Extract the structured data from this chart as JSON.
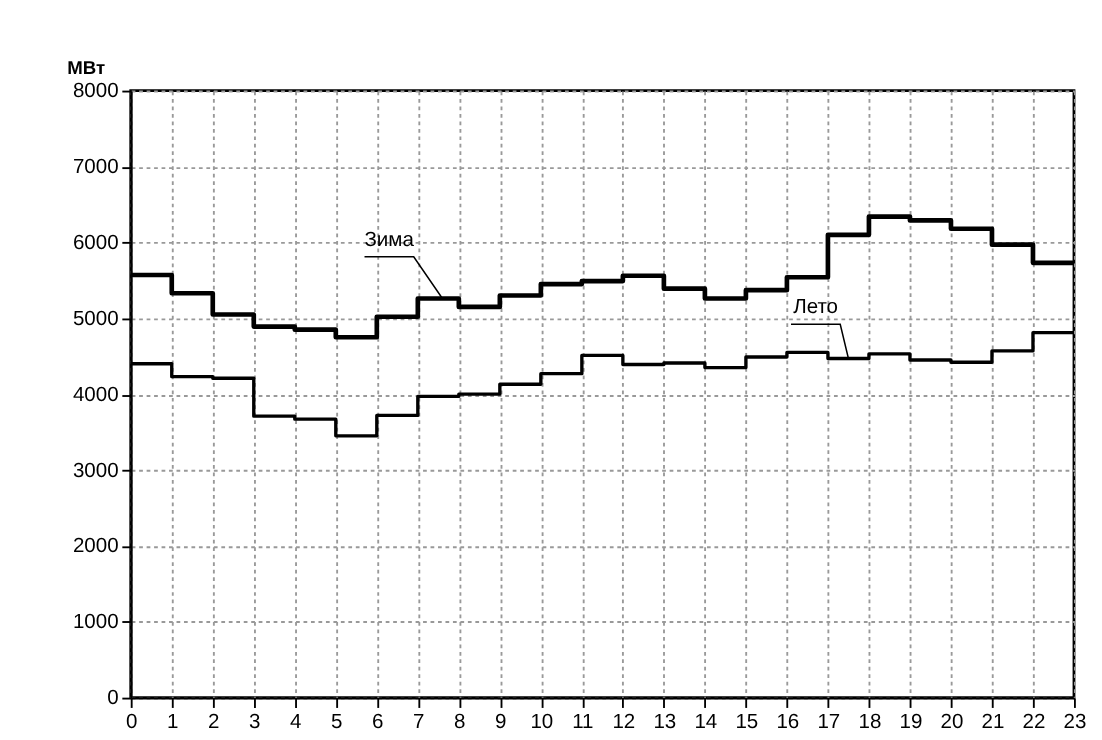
{
  "chart_data": {
    "type": "step",
    "ylabel": "МВт",
    "x": [
      0,
      1,
      2,
      3,
      4,
      5,
      6,
      7,
      8,
      9,
      10,
      11,
      12,
      13,
      14,
      15,
      16,
      17,
      18,
      19,
      20,
      21,
      22,
      23
    ],
    "series": [
      {
        "name": "Зима",
        "color": "#000000",
        "values": [
          5570,
          5330,
          5050,
          4890,
          4850,
          4750,
          5020,
          5260,
          5150,
          5300,
          5450,
          5490,
          5560,
          5390,
          5260,
          5370,
          5540,
          6100,
          6340,
          6290,
          6180,
          5970,
          5730,
          5730
        ]
      },
      {
        "name": "Лето",
        "color": "#000000",
        "values": [
          4400,
          4230,
          4210,
          3710,
          3670,
          3450,
          3720,
          3970,
          4000,
          4130,
          4270,
          4510,
          4390,
          4410,
          4350,
          4490,
          4550,
          4470,
          4530,
          4450,
          4420,
          4570,
          4810,
          4810
        ]
      }
    ],
    "xlim": [
      0,
      23
    ],
    "xticks": [
      0,
      1,
      2,
      3,
      4,
      5,
      6,
      7,
      8,
      9,
      10,
      11,
      12,
      13,
      14,
      15,
      16,
      17,
      18,
      19,
      20,
      21,
      22,
      23
    ],
    "ylim": [
      0,
      8000
    ],
    "yticks": [
      0,
      1000,
      2000,
      3000,
      4000,
      5000,
      6000,
      7000,
      8000
    ],
    "grid": true,
    "legend": false,
    "marker": "none",
    "line_style": "solid"
  }
}
